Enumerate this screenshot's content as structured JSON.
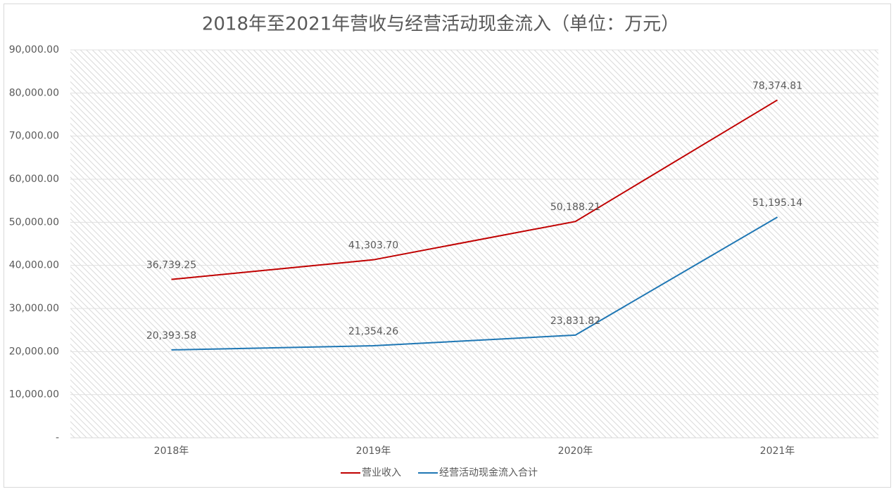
{
  "chart_data": {
    "type": "line",
    "title": "2018年至2021年营收与经营活动现金流入（单位：万元）",
    "categories": [
      "2018年",
      "2019年",
      "2020年",
      "2021年"
    ],
    "series": [
      {
        "name": "营业收入",
        "color": "#c00000",
        "values": [
          36739.25,
          41303.7,
          50188.21,
          78374.81
        ],
        "value_labels": [
          "36,739.25",
          "41,303.70",
          "50,188.21",
          "78,374.81"
        ]
      },
      {
        "name": "经营活动现金流入合计",
        "color": "#1f77b4",
        "values": [
          20393.58,
          21354.26,
          23831.82,
          51195.14
        ],
        "value_labels": [
          "20,393.58",
          "21,354.26",
          "23,831.82",
          "51,195.14"
        ]
      }
    ],
    "ylim": [
      0,
      90000
    ],
    "yticks": [
      {
        "value": 0,
        "label": "-"
      },
      {
        "value": 10000,
        "label": "10,000.00"
      },
      {
        "value": 20000,
        "label": "20,000.00"
      },
      {
        "value": 30000,
        "label": "30,000.00"
      },
      {
        "value": 40000,
        "label": "40,000.00"
      },
      {
        "value": 50000,
        "label": "50,000.00"
      },
      {
        "value": 60000,
        "label": "60,000.00"
      },
      {
        "value": 70000,
        "label": "70,000.00"
      },
      {
        "value": 80000,
        "label": "80,000.00"
      },
      {
        "value": 90000,
        "label": "90,000.00"
      }
    ],
    "grid": true,
    "legend": "bottom"
  }
}
